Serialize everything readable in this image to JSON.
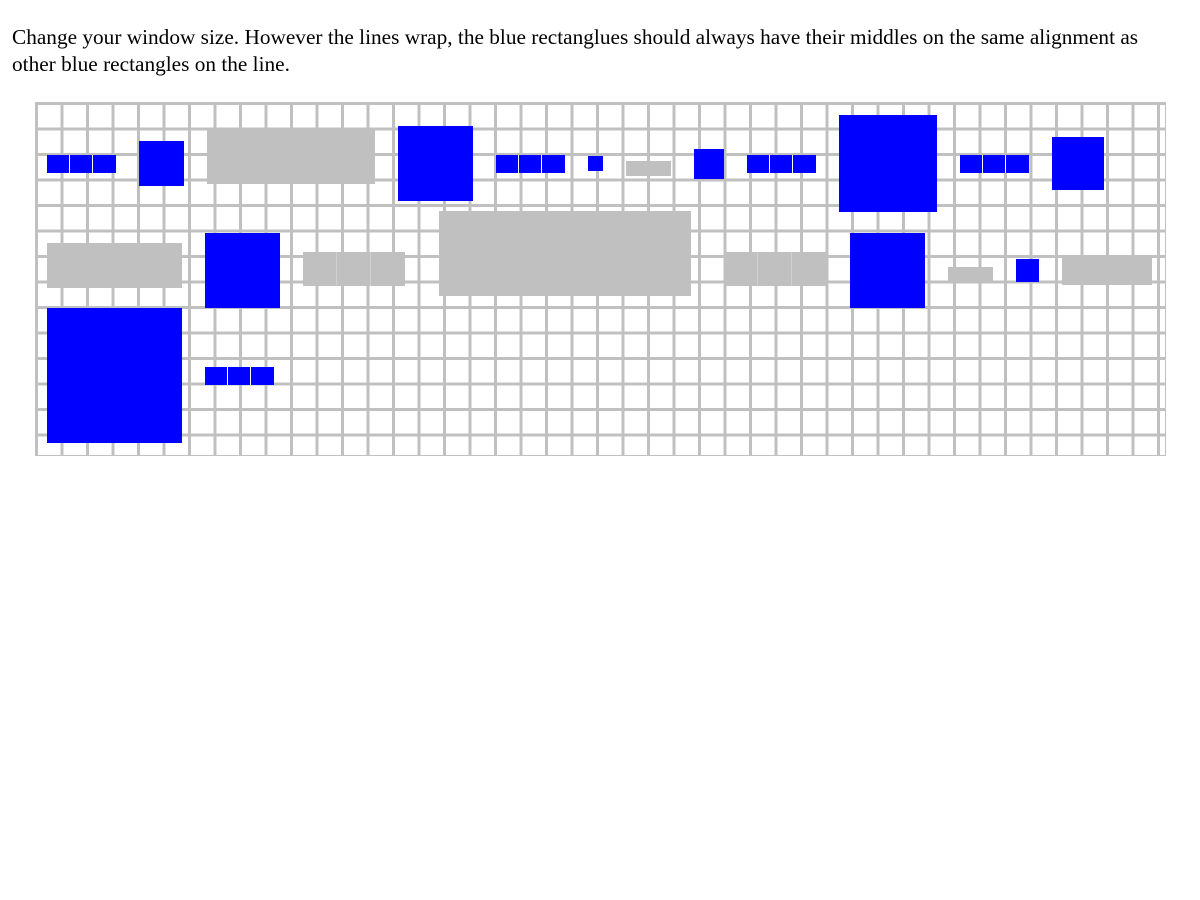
{
  "instructions": "Change your window size. However the lines wrap, the blue rectanglues should always have their middles on the same alignment as other blue rectangles on the line.",
  "colors": {
    "blue": "#0000ff",
    "gray": "#c0c0c0",
    "grid": "#c0c0c0",
    "background": "#ffffff"
  }
}
